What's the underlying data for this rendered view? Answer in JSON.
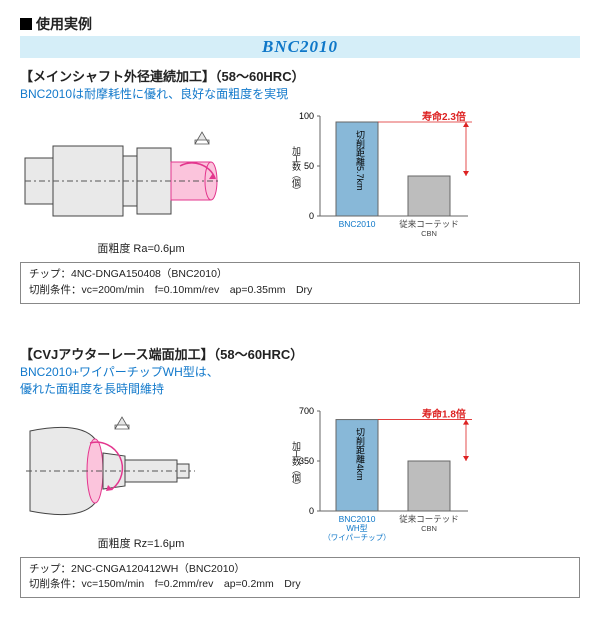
{
  "header": {
    "title": "使用実例"
  },
  "band": {
    "title": "BNC2010"
  },
  "section1": {
    "head": "【メインシャフト外径連続加工】（58〜60HRC）",
    "sub": "BNC2010は耐摩耗性に優れ、良好な面粗度を実現",
    "roughness": "面粗度 Ra=0.6μm",
    "chart": {
      "ylabel": "加工数（個）",
      "ymax": 100,
      "ytick_count": 2,
      "bars": [
        {
          "label_top": "BNC2010",
          "label_bottom": "",
          "value": 94,
          "color": "#88b8d8",
          "labelcolor": "#0e77c8",
          "inner": "切削距離5.7km"
        },
        {
          "label_top": "従来コーテッド",
          "label_bottom": "CBN",
          "value": 40,
          "color": "#bdbdbd",
          "labelcolor": "#444",
          "inner": ""
        }
      ],
      "ratio": "寿命2.3倍",
      "background": "#ffffff",
      "axis_color": "#666"
    },
    "info": {
      "chip": "チップ：4NC-DNGA150408（BNC2010）",
      "cond": "切削条件：vc=200m/min　f=0.10mm/rev　ap=0.35mm　Dry"
    }
  },
  "section2": {
    "head": "【CVJアウターレース端面加工】（58〜60HRC）",
    "sub_l1": "BNC2010+ワイパーチップWH型は、",
    "sub_l2": "優れた面粗度を長時間維持",
    "roughness": "面粗度 Rz=1.6μm",
    "chart": {
      "ylabel": "加工数（個）",
      "ymax": 700,
      "ytick_count": 2,
      "bars": [
        {
          "label_top": "BNC2010",
          "label_mid": "WH型",
          "label_bottom": "（ワイパーチップ）",
          "value": 640,
          "color": "#88b8d8",
          "labelcolor": "#0e77c8",
          "inner": "切削距離4km"
        },
        {
          "label_top": "従来コーテッド",
          "label_mid": "",
          "label_bottom": "CBN",
          "value": 350,
          "color": "#bdbdbd",
          "labelcolor": "#444",
          "inner": ""
        }
      ],
      "ratio": "寿命1.8倍",
      "background": "#ffffff",
      "axis_color": "#666"
    },
    "info": {
      "chip": "チップ：2NC-CNGA120412WH（BNC2010）",
      "cond": "切削条件：vc=150m/min　f=0.2mm/rev　ap=0.2mm　Dry"
    }
  },
  "part_colors": {
    "shaft_fill": "#e9e9e9",
    "shaft_stroke": "#444",
    "pink": "#fbc4dc",
    "pink_stroke": "#e3368e",
    "arrow": "#e3368e",
    "insert_fill": "#e6e6e6"
  }
}
